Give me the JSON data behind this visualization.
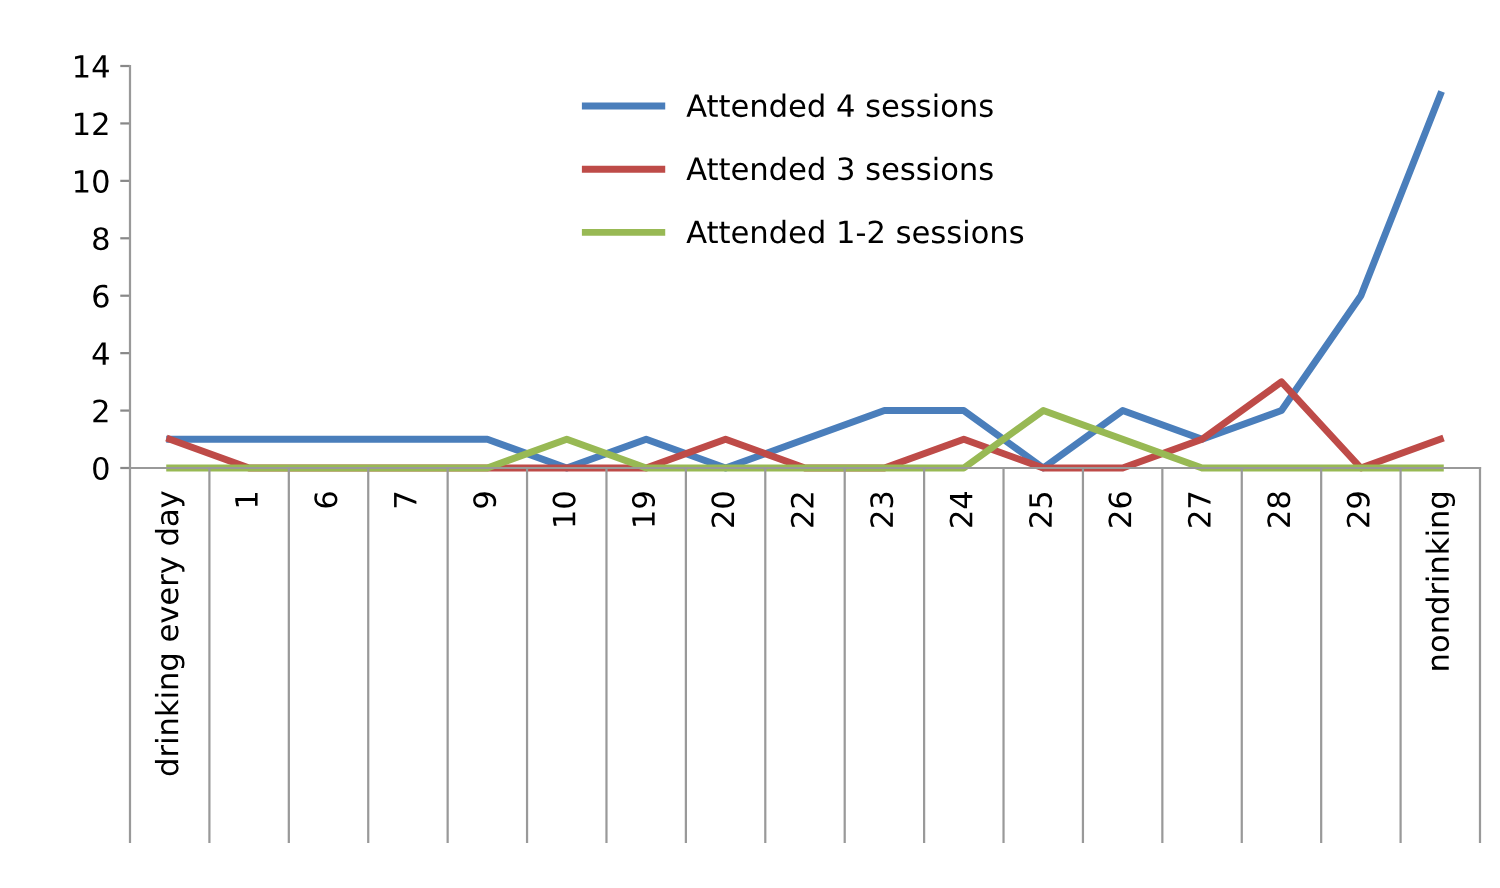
{
  "chart_data": {
    "type": "line",
    "categories": [
      "drinking every day",
      "1",
      "6",
      "7",
      "9",
      "10",
      "19",
      "20",
      "22",
      "23",
      "24",
      "25",
      "26",
      "27",
      "28",
      "29",
      "nondrinking"
    ],
    "series": [
      {
        "name": "Attended 4 sessions",
        "color": "#4a7ebb",
        "values": [
          1,
          1,
          1,
          1,
          1,
          0,
          1,
          0,
          1,
          2,
          2,
          0,
          2,
          1,
          2,
          6,
          13
        ]
      },
      {
        "name": "Attended 3 sessions",
        "color": "#be4b48",
        "values": [
          1,
          0,
          0,
          0,
          0,
          0,
          0,
          1,
          0,
          0,
          1,
          0,
          0,
          1,
          3,
          0,
          1
        ]
      },
      {
        "name": "Attended 1-2 sessions",
        "color": "#98b954",
        "values": [
          0,
          0,
          0,
          0,
          0,
          1,
          0,
          0,
          0,
          0,
          0,
          2,
          1,
          0,
          0,
          0,
          0
        ]
      }
    ],
    "ylim": [
      0,
      14
    ],
    "yticks": [
      0,
      2,
      4,
      6,
      8,
      10,
      12,
      14
    ],
    "grid": false,
    "legend": "top",
    "marker": "none",
    "line_style": "solid"
  }
}
